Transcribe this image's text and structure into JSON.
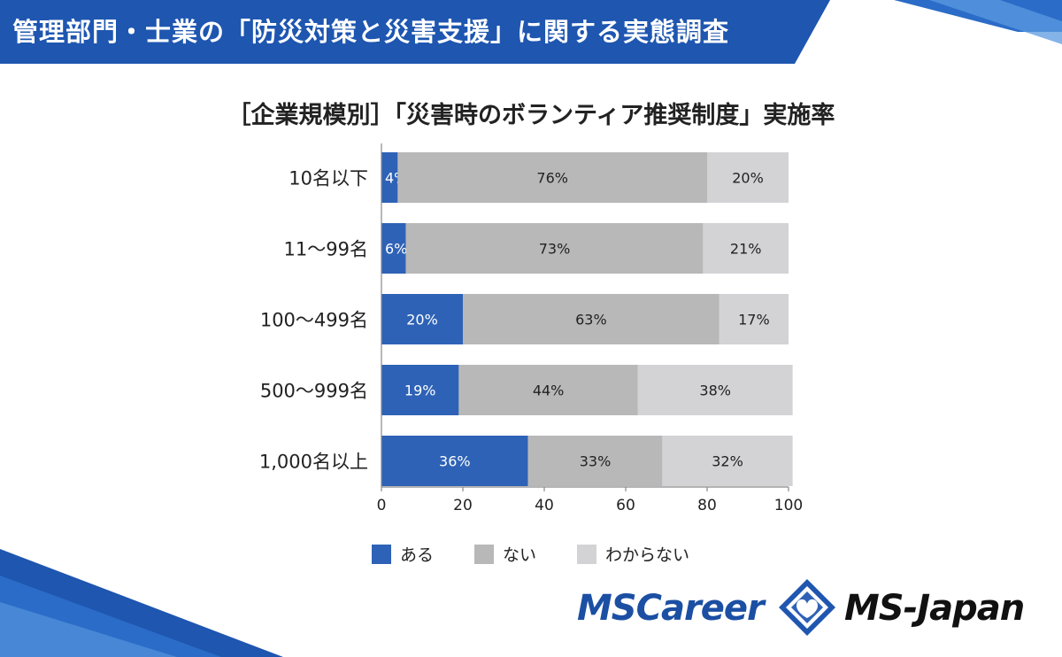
{
  "header": {
    "title": "管理部門・士業の「防災対策と災害支援」に関する実態調査"
  },
  "chart_data": {
    "type": "bar",
    "orientation": "horizontal",
    "stacked": true,
    "title": "［企業規模別］「災害時のボランティア推奨制度」実施率",
    "categories": [
      "10名以下",
      "11～99名",
      "100～499名",
      "500～999名",
      "1,000名以上"
    ],
    "series": [
      {
        "name": "ある",
        "values": [
          4,
          6,
          20,
          19,
          36
        ],
        "labels": [
          "4%",
          "6%",
          "20%",
          "19%",
          "36%"
        ],
        "color": "#2e62b6",
        "label_color": "#ffffff"
      },
      {
        "name": "ない",
        "values": [
          76,
          73,
          63,
          44,
          33
        ],
        "labels": [
          "76%",
          "73%",
          "63%",
          "44%",
          "33%"
        ],
        "color": "#b8b8b8",
        "label_color": "#222222"
      },
      {
        "name": "わからない",
        "values": [
          20,
          21,
          17,
          38,
          32
        ],
        "labels": [
          "20%",
          "21%",
          "17%",
          "38%",
          "32%"
        ],
        "color": "#d3d3d6",
        "label_color": "#222222"
      }
    ],
    "xlim": [
      0,
      100
    ],
    "xticks": [
      "0",
      "20",
      "40",
      "60",
      "80",
      "100"
    ],
    "legend_position": "bottom",
    "grid": false
  },
  "logos": {
    "left": "MSCareer",
    "right": "MS-Japan"
  },
  "colors": {
    "header_blue": "#1b4fa3",
    "accent_blue": "#2e62b6"
  }
}
